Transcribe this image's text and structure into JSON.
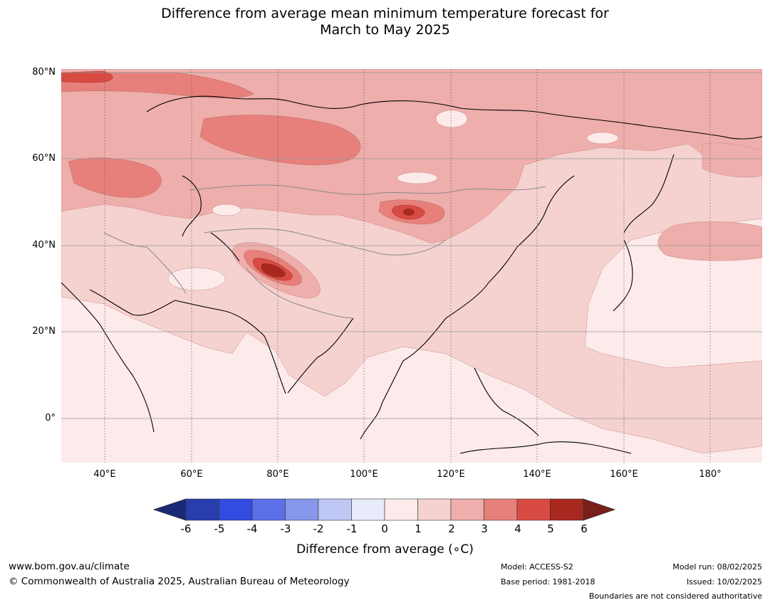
{
  "title": {
    "line1": "Difference from average mean minimum temperature forecast for",
    "line2": "March to May 2025"
  },
  "map": {
    "lat_labels": [
      "80°N",
      "60°N",
      "40°N",
      "20°N",
      "0°"
    ],
    "lon_labels": [
      "40°E",
      "60°E",
      "80°E",
      "100°E",
      "120°E",
      "140°E",
      "160°E",
      "180°"
    ],
    "extent": {
      "lon_min": 30,
      "lon_max": 192,
      "lat_min": -10,
      "lat_max": 81
    },
    "hotspots": [
      {
        "region": "western Tibetan Plateau",
        "lon": 81,
        "lat": 34,
        "value_c": "4 to 6"
      },
      {
        "region": "Mongolia",
        "lon": 110,
        "lat": 48,
        "value_c": "3 to 5"
      }
    ]
  },
  "colorbar": {
    "ticks": [
      "-6",
      "-5",
      "-4",
      "-3",
      "-2",
      "-1",
      "0",
      "1",
      "2",
      "3",
      "4",
      "5",
      "6"
    ],
    "colors": [
      "#1b2a78",
      "#283ead",
      "#324be0",
      "#5b6fe6",
      "#8797ec",
      "#bfc8f5",
      "#e8ebfa",
      "#fcebea",
      "#f5d2d0",
      "#eeaeab",
      "#e7807b",
      "#d84b42",
      "#a8281f",
      "#7a1e19"
    ],
    "label": "Difference from average (∘C)"
  },
  "footer": {
    "website": "www.bom.gov.au/climate",
    "copyright": "© Commonwealth of Australia 2025, Australian Bureau of Meteorology",
    "model": "Model: ACCESS-S2",
    "base_period": "Base period: 1981-2018",
    "model_run": "Model run: 08/02/2025",
    "issued": "Issued: 10/02/2025",
    "disclaimer": "Boundaries are not considered authoritative"
  }
}
